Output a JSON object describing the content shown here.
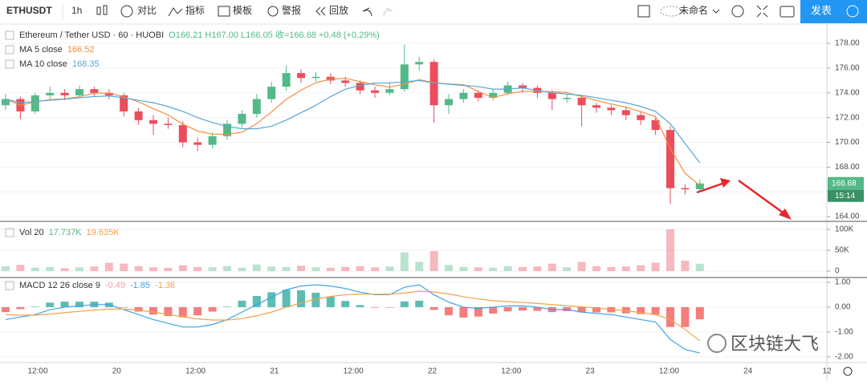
{
  "toolbar": {
    "symbol": "ETHUSDT",
    "interval": "1h",
    "compare": "对比",
    "indicators": "指标",
    "templates": "模板",
    "alert": "警报",
    "replay": "回放",
    "layout_name": "未命名",
    "publish": "发表"
  },
  "chart_data": [
    {
      "type": "candlestick",
      "title": "Ethereum / Tether USD · 60 · HUOBI",
      "legend_values": "O166.21 H167.00 L166.05 收=166.68 +0.48 (+0.29%)",
      "up_color": "#53b987",
      "down_color": "#eb4d5c",
      "candles": [
        [
          173.0,
          173.9,
          172.6,
          173.5
        ],
        [
          173.5,
          173.7,
          171.9,
          172.5
        ],
        [
          172.5,
          174.0,
          172.3,
          173.8
        ],
        [
          173.8,
          174.5,
          173.5,
          174.0
        ],
        [
          174.0,
          174.3,
          173.4,
          173.8
        ],
        [
          173.8,
          174.6,
          173.6,
          174.3
        ],
        [
          174.3,
          174.5,
          173.7,
          174.0
        ],
        [
          174.0,
          174.3,
          173.5,
          173.8
        ],
        [
          173.8,
          174.0,
          172.1,
          172.5
        ],
        [
          172.5,
          172.8,
          171.4,
          171.8
        ],
        [
          171.8,
          172.2,
          170.6,
          171.5
        ],
        [
          171.5,
          172.0,
          171.1,
          171.4
        ],
        [
          171.4,
          171.7,
          169.6,
          170.0
        ],
        [
          170.0,
          170.4,
          169.3,
          169.8
        ],
        [
          169.8,
          170.8,
          169.5,
          170.5
        ],
        [
          170.5,
          171.8,
          170.2,
          171.5
        ],
        [
          171.5,
          172.6,
          171.2,
          172.3
        ],
        [
          172.3,
          173.9,
          172.0,
          173.5
        ],
        [
          173.5,
          174.9,
          173.2,
          174.5
        ],
        [
          174.5,
          176.2,
          174.2,
          175.6
        ],
        [
          175.6,
          175.9,
          174.8,
          175.2
        ],
        [
          175.2,
          175.7,
          174.9,
          175.3
        ],
        [
          175.3,
          175.6,
          174.7,
          175.0
        ],
        [
          175.0,
          175.3,
          174.5,
          174.8
        ],
        [
          174.8,
          175.0,
          173.9,
          174.2
        ],
        [
          174.2,
          174.5,
          173.6,
          174.0
        ],
        [
          174.0,
          174.8,
          173.8,
          174.3
        ],
        [
          174.3,
          177.9,
          174.1,
          176.3
        ],
        [
          176.3,
          176.9,
          175.8,
          176.5
        ],
        [
          176.5,
          176.7,
          171.6,
          173.0
        ],
        [
          173.0,
          173.9,
          172.3,
          173.5
        ],
        [
          173.5,
          174.3,
          173.2,
          174.0
        ],
        [
          174.0,
          174.2,
          173.3,
          173.6
        ],
        [
          173.6,
          174.3,
          173.4,
          174.0
        ],
        [
          174.0,
          174.9,
          173.8,
          174.6
        ],
        [
          174.6,
          174.8,
          174.0,
          174.4
        ],
        [
          174.4,
          174.6,
          173.6,
          174.0
        ],
        [
          174.0,
          174.2,
          172.6,
          173.5
        ],
        [
          173.5,
          173.9,
          173.2,
          173.6
        ],
        [
          173.6,
          173.8,
          171.3,
          173.0
        ],
        [
          173.0,
          173.2,
          172.4,
          172.8
        ],
        [
          172.8,
          173.0,
          172.2,
          172.6
        ],
        [
          172.6,
          172.9,
          171.8,
          172.2
        ],
        [
          172.2,
          172.5,
          171.4,
          171.8
        ],
        [
          171.8,
          172.0,
          170.6,
          171.0
        ],
        [
          171.0,
          171.3,
          165.0,
          166.3
        ],
        [
          166.3,
          166.6,
          165.8,
          166.2
        ],
        [
          166.21,
          167.0,
          166.05,
          166.68
        ]
      ],
      "series": [
        {
          "name": "MA 5 close",
          "value_label": "166.52",
          "color": "#f68b3c",
          "values": [
            173.5,
            173.0,
            173.27,
            173.45,
            173.52,
            173.68,
            173.98,
            173.98,
            173.68,
            173.28,
            172.72,
            172.22,
            171.46,
            170.92,
            170.66,
            170.66,
            170.82,
            171.52,
            172.46,
            173.48,
            174.22,
            174.82,
            175.12,
            175.18,
            174.9,
            174.66,
            174.46,
            174.72,
            175.06,
            174.82,
            174.72,
            174.66,
            174.12,
            173.62,
            173.94,
            174.12,
            174.12,
            174.1,
            174.02,
            173.7,
            173.38,
            173.1,
            172.84,
            172.48,
            172.08,
            169.5,
            167.5,
            166.52
          ]
        },
        {
          "name": "MA 10 close",
          "value_label": "168.35",
          "color": "#56a7d6",
          "values": [
            173.5,
            173.2,
            173.3,
            173.4,
            173.5,
            173.6,
            173.7,
            173.75,
            173.6,
            173.4,
            173.2,
            172.9,
            172.5,
            172.0,
            171.6,
            171.3,
            171.1,
            171.1,
            171.3,
            171.8,
            172.4,
            173.0,
            173.7,
            174.3,
            174.6,
            174.8,
            174.8,
            174.9,
            175.0,
            174.8,
            174.7,
            174.6,
            174.5,
            174.3,
            174.3,
            174.4,
            174.2,
            174.0,
            173.9,
            173.8,
            173.6,
            173.4,
            173.2,
            172.9,
            172.5,
            171.5,
            169.9,
            168.35
          ]
        }
      ],
      "ylim": [
        163.68,
        179.56
      ],
      "yticks": [
        {
          "value": 164,
          "label": "164.00"
        },
        {
          "value": 166,
          "label": "166.00"
        },
        {
          "value": 168,
          "label": "168.00"
        },
        {
          "value": 170,
          "label": "170.00"
        },
        {
          "value": 172,
          "label": "172.00"
        },
        {
          "value": 174,
          "label": "174.00"
        },
        {
          "value": 176,
          "label": "176.00"
        },
        {
          "value": 178,
          "label": "178.00"
        }
      ],
      "last_price": "166.68",
      "countdown": "15:14"
    },
    {
      "type": "volume",
      "name": "Vol 20",
      "legend_values": [
        "17.737K",
        "19.635K"
      ],
      "values": [
        12000,
        15000,
        8000,
        10000,
        7000,
        9000,
        11000,
        20000,
        18000,
        12000,
        9000,
        8000,
        14000,
        10000,
        9000,
        12000,
        8000,
        16000,
        11000,
        10000,
        13000,
        9000,
        8000,
        10000,
        12000,
        9000,
        11000,
        45000,
        22000,
        48000,
        15000,
        10000,
        9000,
        8000,
        12000,
        10000,
        11000,
        18000,
        9000,
        22000,
        12000,
        10000,
        11000,
        14000,
        20000,
        100000,
        25000,
        17737
      ],
      "ylim": [
        -13460,
        115380
      ],
      "yticks": [
        0,
        {
          "value": 50000,
          "label": "50K"
        },
        {
          "value": 100000,
          "label": "100K"
        }
      ]
    },
    {
      "type": "macd",
      "name": "MACD 12 26 close 9",
      "legend_values": [
        "-0.49",
        "-1.85",
        "-1.36"
      ],
      "histogram": [
        -0.2,
        -0.08,
        0.02,
        0.18,
        0.22,
        0.22,
        0.22,
        0.18,
        -0.02,
        -0.18,
        -0.3,
        -0.36,
        -0.41,
        -0.33,
        -0.18,
        0.02,
        0.26,
        0.45,
        0.6,
        0.7,
        0.68,
        0.58,
        0.42,
        0.25,
        0.08,
        -0.02,
        -0.02,
        0.23,
        0.26,
        -0.11,
        -0.33,
        -0.42,
        -0.38,
        -0.26,
        -0.17,
        -0.14,
        -0.15,
        -0.2,
        -0.16,
        -0.21,
        -0.21,
        -0.21,
        -0.25,
        -0.28,
        -0.3,
        -0.8,
        -0.8,
        -0.49
      ],
      "series": [
        {
          "color": "#3ba3e8",
          "values": [
            -0.5,
            -0.4,
            -0.3,
            -0.1,
            0.0,
            0.05,
            0.1,
            0.1,
            -0.1,
            -0.3,
            -0.5,
            -0.65,
            -0.8,
            -0.8,
            -0.7,
            -0.5,
            -0.2,
            0.1,
            0.4,
            0.7,
            0.85,
            0.9,
            0.85,
            0.75,
            0.6,
            0.5,
            0.5,
            0.8,
            0.9,
            0.5,
            0.2,
            0.0,
            -0.05,
            0.0,
            0.05,
            0.05,
            0.0,
            -0.1,
            -0.1,
            -0.2,
            -0.25,
            -0.3,
            -0.4,
            -0.5,
            -0.6,
            -1.3,
            -1.7,
            -1.85
          ]
        },
        {
          "color": "#f5a04a",
          "values": [
            -0.3,
            -0.32,
            -0.32,
            -0.28,
            -0.22,
            -0.17,
            -0.12,
            -0.08,
            -0.08,
            -0.12,
            -0.2,
            -0.29,
            -0.39,
            -0.47,
            -0.52,
            -0.52,
            -0.46,
            -0.35,
            -0.2,
            0.0,
            0.17,
            0.32,
            0.43,
            0.5,
            0.52,
            0.52,
            0.52,
            0.57,
            0.64,
            0.61,
            0.53,
            0.42,
            0.33,
            0.26,
            0.22,
            0.19,
            0.15,
            0.1,
            0.06,
            0.01,
            -0.04,
            -0.09,
            -0.15,
            -0.22,
            -0.3,
            -0.5,
            -0.9,
            -1.36
          ]
        }
      ],
      "ylim": [
        -2.23,
        1.16
      ],
      "yticks": [
        {
          "value": 1,
          "label": "1.00"
        },
        {
          "value": 0,
          "label": "0.00"
        },
        {
          "value": -1,
          "label": "-1.00"
        },
        {
          "value": -2,
          "label": "-2.00"
        }
      ]
    }
  ],
  "time_axis": [
    "12:00",
    "20",
    "12:00",
    "21",
    "12:00",
    "22",
    "12:00",
    "23",
    "12:00",
    "24",
    "12"
  ],
  "watermark": "区块链大飞"
}
